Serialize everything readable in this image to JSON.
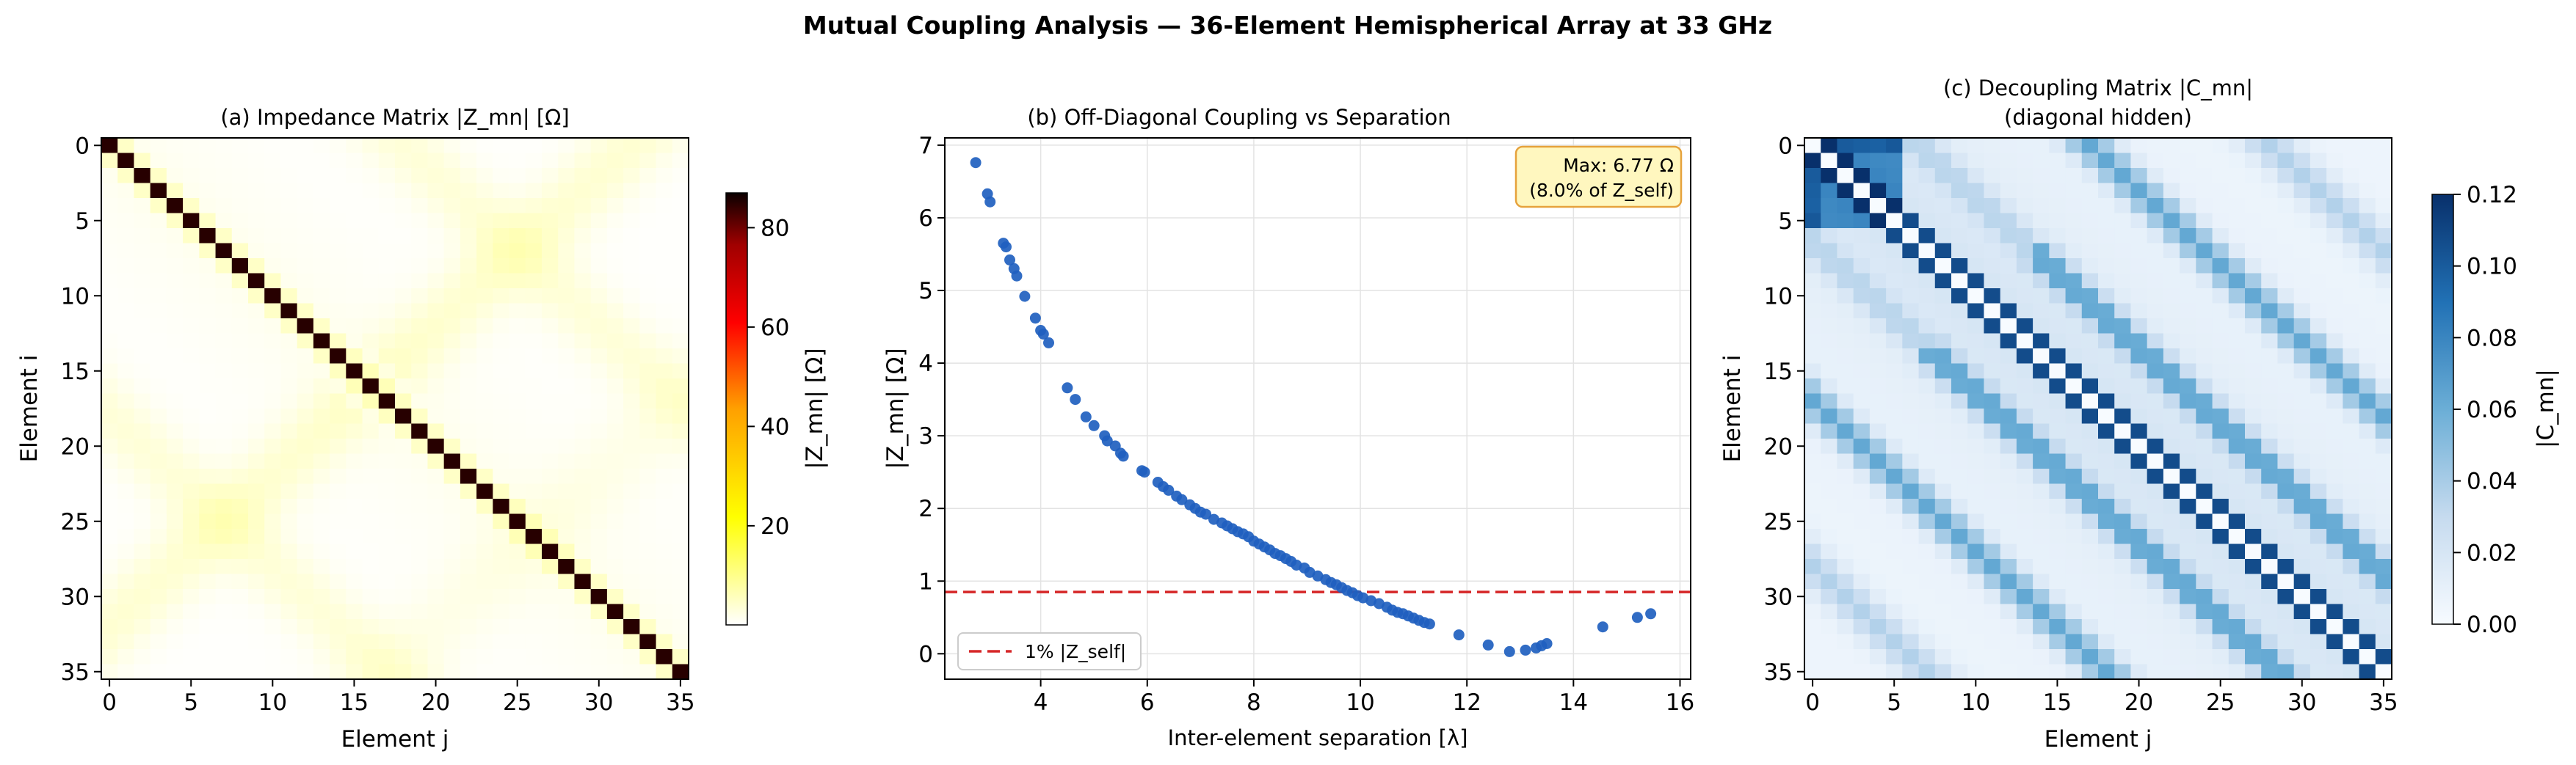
{
  "figure": {
    "suptitle": "Mutual Coupling Analysis — 36-Element Hemispherical Array at 33 GHz"
  },
  "chart_data": [
    {
      "type": "heatmap",
      "title": "(a) Impedance Matrix |Z_mn| [Ω]",
      "xlabel": "Element j",
      "ylabel": "Element i",
      "n": 36,
      "xticks": [
        "0",
        "5",
        "10",
        "15",
        "20",
        "25",
        "30",
        "35"
      ],
      "yticks": [
        "0",
        "5",
        "10",
        "15",
        "20",
        "25",
        "30",
        "35"
      ],
      "colormap": "hot_r",
      "colorbar": {
        "label": "|Z_mn| [Ω]",
        "range": [
          0.05,
          87
        ],
        "ticks": [
          "20",
          "40",
          "60",
          "80"
        ],
        "tick_values": [
          20,
          40,
          60,
          80
        ]
      },
      "diagonal_value": 85,
      "offdiag_max": 6.77,
      "grid": false
    },
    {
      "type": "scatter",
      "title": "(b) Off-Diagonal Coupling vs Separation",
      "xlabel": "Inter-element separation [λ]",
      "ylabel": "|Z_mn| [Ω]",
      "xlim": [
        2.2,
        16.2
      ],
      "ylim": [
        -0.35,
        7.1
      ],
      "xticks": [
        "4",
        "6",
        "8",
        "10",
        "12",
        "14",
        "16"
      ],
      "xtick_values": [
        4,
        6,
        8,
        10,
        12,
        14,
        16
      ],
      "yticks": [
        "0",
        "1",
        "2",
        "3",
        "4",
        "5",
        "6",
        "7"
      ],
      "ytick_values": [
        0,
        1,
        2,
        3,
        4,
        5,
        6,
        7
      ],
      "grid": true,
      "series_color": "#1f5fbf",
      "points": [
        [
          2.78,
          6.76
        ],
        [
          3.0,
          6.33
        ],
        [
          3.05,
          6.22
        ],
        [
          3.3,
          5.65
        ],
        [
          3.35,
          5.6
        ],
        [
          3.42,
          5.42
        ],
        [
          3.5,
          5.3
        ],
        [
          3.55,
          5.2
        ],
        [
          3.7,
          4.92
        ],
        [
          3.9,
          4.62
        ],
        [
          4.0,
          4.45
        ],
        [
          4.05,
          4.4
        ],
        [
          4.15,
          4.28
        ],
        [
          4.5,
          3.66
        ],
        [
          4.65,
          3.5
        ],
        [
          4.85,
          3.26
        ],
        [
          5.0,
          3.14
        ],
        [
          5.2,
          3.0
        ],
        [
          5.25,
          2.93
        ],
        [
          5.4,
          2.86
        ],
        [
          5.5,
          2.76
        ],
        [
          5.55,
          2.72
        ],
        [
          5.9,
          2.52
        ],
        [
          5.95,
          2.5
        ],
        [
          6.2,
          2.36
        ],
        [
          6.3,
          2.3
        ],
        [
          6.4,
          2.25
        ],
        [
          6.55,
          2.17
        ],
        [
          6.65,
          2.12
        ],
        [
          6.8,
          2.05
        ],
        [
          6.9,
          2.0
        ],
        [
          7.0,
          1.95
        ],
        [
          7.1,
          1.92
        ],
        [
          7.25,
          1.85
        ],
        [
          7.4,
          1.8
        ],
        [
          7.5,
          1.76
        ],
        [
          7.6,
          1.72
        ],
        [
          7.7,
          1.68
        ],
        [
          7.8,
          1.65
        ],
        [
          7.9,
          1.61
        ],
        [
          8.0,
          1.55
        ],
        [
          8.1,
          1.51
        ],
        [
          8.2,
          1.47
        ],
        [
          8.3,
          1.43
        ],
        [
          8.4,
          1.38
        ],
        [
          8.5,
          1.35
        ],
        [
          8.6,
          1.31
        ],
        [
          8.7,
          1.27
        ],
        [
          8.8,
          1.22
        ],
        [
          8.95,
          1.18
        ],
        [
          9.05,
          1.12
        ],
        [
          9.2,
          1.07
        ],
        [
          9.35,
          1.02
        ],
        [
          9.45,
          0.98
        ],
        [
          9.55,
          0.95
        ],
        [
          9.65,
          0.91
        ],
        [
          9.75,
          0.87
        ],
        [
          9.85,
          0.84
        ],
        [
          9.95,
          0.8
        ],
        [
          10.05,
          0.77
        ],
        [
          10.2,
          0.73
        ],
        [
          10.35,
          0.69
        ],
        [
          10.5,
          0.64
        ],
        [
          10.6,
          0.6
        ],
        [
          10.7,
          0.57
        ],
        [
          10.8,
          0.55
        ],
        [
          10.9,
          0.52
        ],
        [
          11.0,
          0.49
        ],
        [
          11.1,
          0.46
        ],
        [
          11.2,
          0.43
        ],
        [
          11.3,
          0.41
        ],
        [
          11.85,
          0.26
        ],
        [
          12.4,
          0.12
        ],
        [
          12.8,
          0.03
        ],
        [
          13.1,
          0.05
        ],
        [
          13.3,
          0.08
        ],
        [
          13.4,
          0.11
        ],
        [
          13.5,
          0.14
        ],
        [
          14.55,
          0.37
        ],
        [
          15.2,
          0.5
        ],
        [
          15.45,
          0.55
        ]
      ],
      "hline": {
        "y": 0.85,
        "color": "#d62728",
        "label": "1% |Z_self|"
      },
      "legend": "lower-left",
      "annotation": {
        "lines": [
          "Max: 6.77 Ω",
          "(8.0% of Z_self)"
        ],
        "placement": "top-right"
      }
    },
    {
      "type": "heatmap",
      "title_lines": [
        "(c) Decoupling Matrix |C_mn|",
        "(diagonal hidden)"
      ],
      "xlabel": "Element j",
      "ylabel": "Element i",
      "n": 36,
      "xticks": [
        "0",
        "5",
        "10",
        "15",
        "20",
        "25",
        "30",
        "35"
      ],
      "yticks": [
        "0",
        "5",
        "10",
        "15",
        "20",
        "25",
        "30",
        "35"
      ],
      "colormap": "Blues",
      "colorbar": {
        "label": "|C_mn|",
        "range": [
          0.0,
          0.12
        ],
        "ticks": [
          "0.00",
          "0.02",
          "0.04",
          "0.06",
          "0.08",
          "0.10",
          "0.12"
        ],
        "tick_values": [
          0,
          0.02,
          0.04,
          0.06,
          0.08,
          0.1,
          0.12
        ]
      },
      "grid": false
    }
  ]
}
